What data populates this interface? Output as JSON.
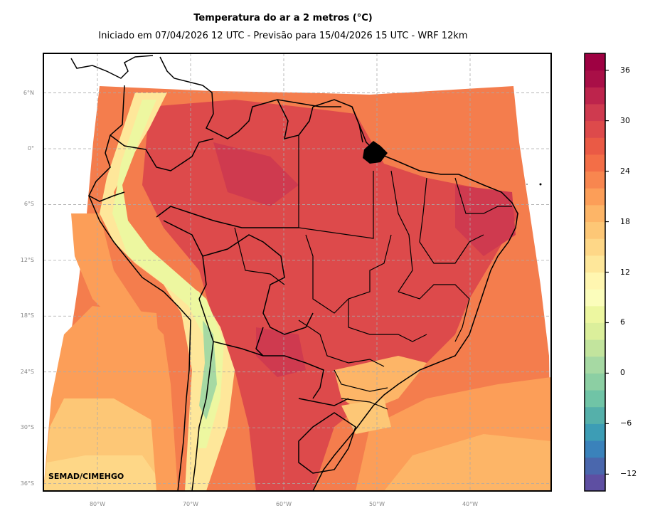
{
  "header": {
    "title": "Temperatura do ar a 2 metros (°C)",
    "subtitle": "Iniciado em 07/04/2026 12 UTC - Previsão para 15/04/2026 15 UTC - WRF 12km"
  },
  "map": {
    "credit": "SEMAD/CIMEHGO",
    "lat_labels": [
      "6°N",
      "0°",
      "6°S",
      "12°S",
      "18°S",
      "24°S",
      "30°S",
      "36°S"
    ],
    "lat_values": [
      6,
      0,
      -6,
      -12,
      -18,
      -24,
      -30,
      -36
    ],
    "lon_labels": [
      "80°W",
      "70°W",
      "60°W",
      "50°W",
      "40°W"
    ],
    "lon_values": [
      -80,
      -70,
      -60,
      -50,
      -40
    ],
    "gridlines": true,
    "variable": "2 m air temperature",
    "units": "°C"
  },
  "colorbar": {
    "min": -14,
    "max": 38,
    "step": 2,
    "tick_labels": [
      "36",
      "30",
      "24",
      "18",
      "12",
      "6",
      "0",
      "−6",
      "−12"
    ],
    "tick_values": [
      36,
      30,
      24,
      18,
      12,
      6,
      0,
      -6,
      -12
    ],
    "colors": [
      "#5e4fa2",
      "#4a67ad",
      "#3a82bb",
      "#3d9db5",
      "#55b0aa",
      "#70c4a6",
      "#8ccfa3",
      "#a6d9a3",
      "#c2e49d",
      "#dbef9b",
      "#edf7a0",
      "#fbfdbb",
      "#fff6b0",
      "#fee79a",
      "#fed787",
      "#fdc776",
      "#fdb567",
      "#fc9e58",
      "#f8864f",
      "#f36e47",
      "#ea5a45",
      "#dd4a4b",
      "#cf3a4f",
      "#bd244c",
      "#a90f47",
      "#9e0142"
    ]
  }
}
